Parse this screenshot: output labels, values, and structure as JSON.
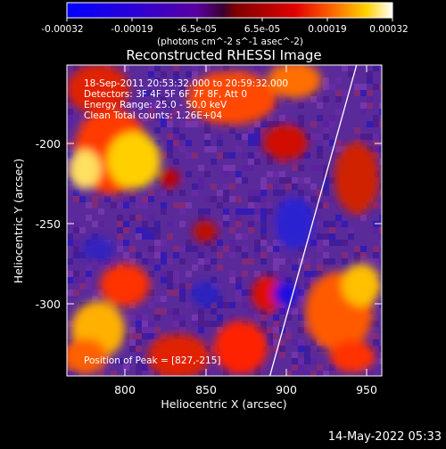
{
  "colorbar": {
    "tick_labels": [
      "-0.00032",
      "-0.00019",
      "-6.5e-05",
      "6.5e-05",
      "0.00019",
      "0.00032"
    ],
    "unit_label": "(photons cm^-2 s^-1 asec^-2)",
    "colors": [
      "#0000ff",
      "#2a00d8",
      "#5a00a0",
      "#800000",
      "#e00000",
      "#ff6a00",
      "#ffd200",
      "#ffffff"
    ]
  },
  "title": "Reconstructed RHESSI Image",
  "info": {
    "line1": "18-Sep-2011 20:53:32.000 to 20:59:32.000",
    "line2": "Detectors: 3F 4F 5F 6F 7F 8F, Att 0",
    "line3": "Energy Range: 25.0 - 50.0 keV",
    "line4": "Clean    Total counts: 1.26E+04"
  },
  "peak": "Position of Peak = [827,-215]",
  "x_axis": {
    "label": "Heliocentric X (arcsec)",
    "ticks": [
      "800",
      "850",
      "900",
      "950"
    ]
  },
  "y_axis": {
    "label": "Heliocentric Y (arcsec)",
    "ticks": [
      "-200",
      "-250",
      "-300"
    ]
  },
  "footer": {
    "timestamp": "14-May-2022 05:33"
  },
  "palette": {
    "background": "#5a2a9a",
    "limb": "#ffffff"
  }
}
